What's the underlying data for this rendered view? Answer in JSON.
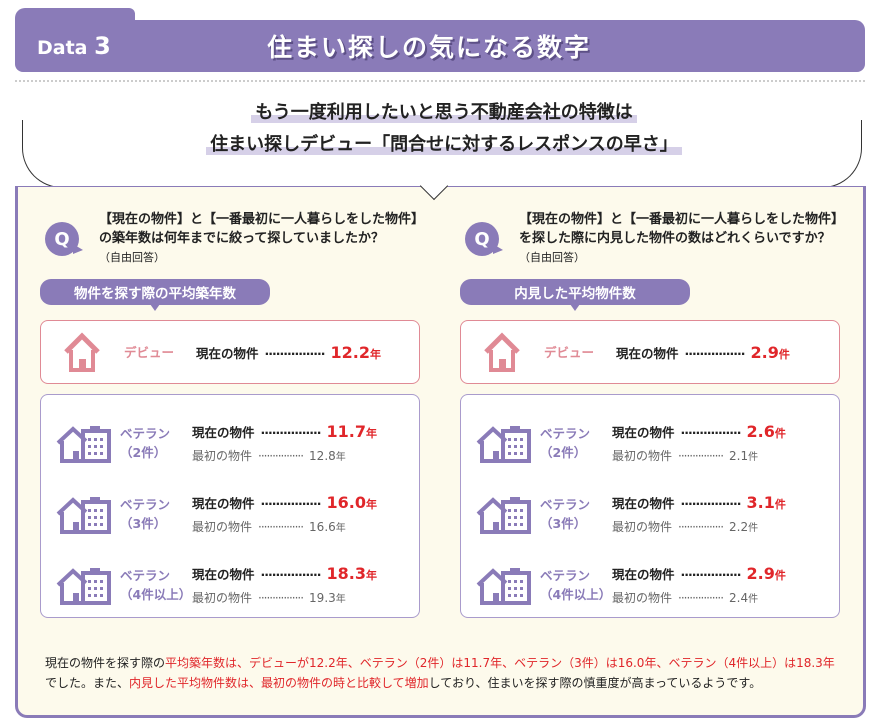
{
  "header": {
    "data_label": "Data",
    "data_num": "3",
    "title": "住まい探しの気になる数字"
  },
  "subtitle": {
    "line1": "もう一度利用したいと思う不動産会社の特徴は",
    "line2": "住まい探しデビュー「問合せに対するレスポンスの早さ」"
  },
  "colors": {
    "purple": "#8a7bb8",
    "pink": "#e08a95",
    "red": "#e0262a",
    "cream": "#fdfaec"
  },
  "columns": [
    {
      "q_icon": "Q",
      "question": "【現在の物件】と【一番最初に一人暮らしをした物件】の築年数は何年までに絞って探していましたか？",
      "note": "（自由回答）",
      "label": "物件を探す際の平均築年数",
      "unit": "年",
      "debut": {
        "name": "デビュー",
        "current_label": "現在の物件",
        "current": "12.2"
      },
      "veterans": [
        {
          "name": "ベテラン",
          "sub": "（2件）",
          "current_label": "現在の物件",
          "current": "11.7",
          "first_label": "最初の物件",
          "first": "12.8"
        },
        {
          "name": "ベテラン",
          "sub": "（3件）",
          "current_label": "現在の物件",
          "current": "16.0",
          "first_label": "最初の物件",
          "first": "16.6"
        },
        {
          "name": "ベテラン",
          "sub": "（4件以上）",
          "current_label": "現在の物件",
          "current": "18.3",
          "first_label": "最初の物件",
          "first": "19.3"
        }
      ]
    },
    {
      "q_icon": "Q",
      "question": "【現在の物件】と【一番最初に一人暮らしをした物件】を探した際に内見した物件の数はどれくらいですか？",
      "note": "（自由回答）",
      "label": "内見した平均物件数",
      "unit": "件",
      "debut": {
        "name": "デビュー",
        "current_label": "現在の物件",
        "current": "2.9"
      },
      "veterans": [
        {
          "name": "ベテラン",
          "sub": "（2件）",
          "current_label": "現在の物件",
          "current": "2.6",
          "first_label": "最初の物件",
          "first": "2.1"
        },
        {
          "name": "ベテラン",
          "sub": "（3件）",
          "current_label": "現在の物件",
          "current": "3.1",
          "first_label": "最初の物件",
          "first": "2.2"
        },
        {
          "name": "ベテラン",
          "sub": "（4件以上）",
          "current_label": "現在の物件",
          "current": "2.9",
          "first_label": "最初の物件",
          "first": "2.4"
        }
      ]
    }
  ],
  "footer": {
    "s1": "現在の物件を探す際の",
    "s2": "平均築年数は、デビューが12.2年、ベテラン（2件）は11.7年、ベテラン（3件）は16.0年、ベテラン（4件以上）は18.3年",
    "s3": "でした。また、",
    "s4": "内見した平均物件数は、最初の物件の時と比較して増加",
    "s5": "しており、住まいを探す際の慎重度が高まっているようです。"
  }
}
